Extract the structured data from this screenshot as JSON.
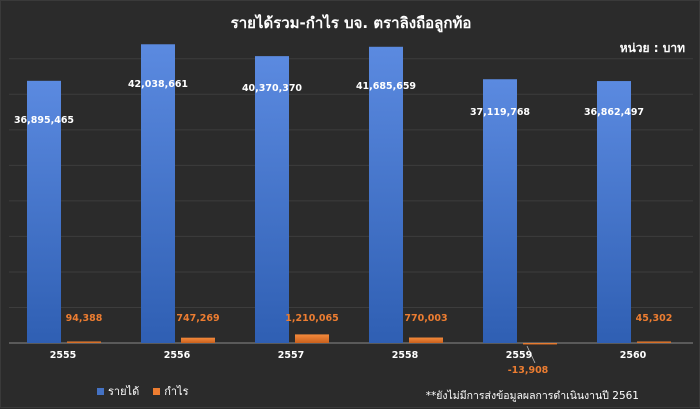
{
  "chart_data": {
    "type": "bar",
    "title": "รายได้รวม-กำไร บจ. ตราลิงถือลูกท้อ",
    "unit_label": "หน่วย : บาท",
    "note": "**ยังไม่มีการส่งข้อมูลผลการดำเนินงานปี 2561",
    "categories": [
      "2555",
      "2556",
      "2557",
      "2558",
      "2559",
      "2560"
    ],
    "series": [
      {
        "name": "รายได้",
        "color": "#4472c4",
        "values": [
          36895465,
          42038661,
          40370370,
          41685659,
          37119768,
          36862497
        ]
      },
      {
        "name": "กำไร",
        "color": "#ed7d31",
        "values": [
          94388,
          747269,
          1210065,
          770003,
          -13908,
          45302
        ]
      }
    ],
    "data_labels": {
      "revenue": [
        "36,895,465",
        "42,038,661",
        "40,370,370",
        "41,685,659",
        "37,119,768",
        "36,862,497"
      ],
      "profit": [
        "94,388",
        "747,269",
        "1,210,065",
        "770,003",
        "-13,908",
        "45,302"
      ]
    },
    "ylim": [
      0,
      42500000
    ],
    "grid": true,
    "legend": "bottom-left"
  }
}
